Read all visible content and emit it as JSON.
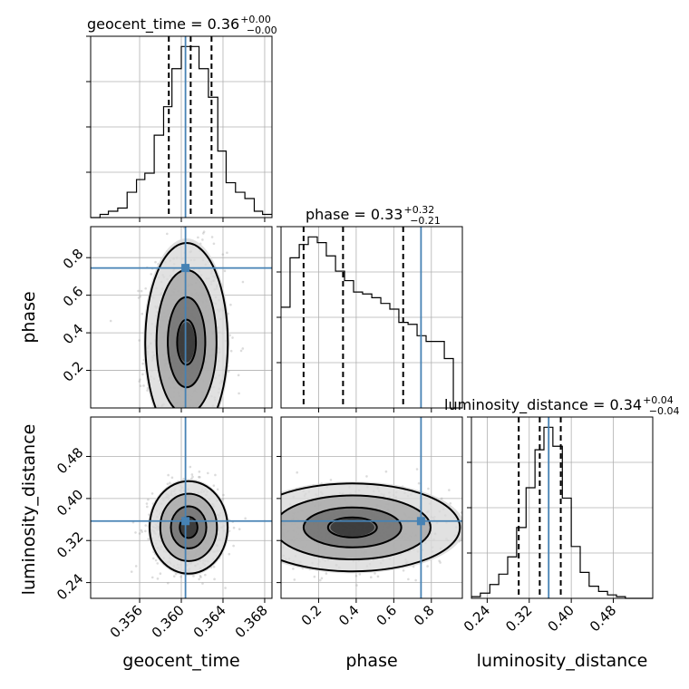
{
  "chart_data": {
    "type": "corner",
    "parameters": [
      "geocent_time",
      "phase",
      "luminosity_distance"
    ],
    "truths": {
      "geocent_time": 0.3604,
      "phase": 0.745,
      "luminosity_distance": 0.357
    },
    "titles": [
      {
        "param": "geocent_time",
        "label": "geocent_time = 0.36",
        "upper": "+0.00",
        "lower": "−0.00"
      },
      {
        "param": "phase",
        "label": "phase = 0.33",
        "upper": "+0.32",
        "lower": "−0.21"
      },
      {
        "param": "luminosity_distance",
        "label": "luminosity_distance = 0.34",
        "upper": "+0.04",
        "lower": "−0.04"
      }
    ],
    "axis_labels": {
      "geocent_time": "geocent_time",
      "phase": "phase",
      "luminosity_distance": "luminosity_distance"
    },
    "ranges": {
      "geocent_time": [
        0.3513,
        0.3687
      ],
      "phase": [
        0.0,
        0.965
      ],
      "luminosity_distance": [
        0.21,
        0.555
      ]
    },
    "ticks": {
      "geocent_time": [
        "0.356",
        "0.360",
        "0.364",
        "0.368"
      ],
      "phase": [
        "0.2",
        "0.4",
        "0.6",
        "0.8"
      ],
      "luminosity_distance": [
        "0.24",
        "0.32",
        "0.40",
        "0.48"
      ]
    },
    "quantiles": {
      "geocent_time": [
        0.3588,
        0.3609,
        0.3629
      ],
      "phase": [
        0.12,
        0.33,
        0.65
      ],
      "luminosity_distance": [
        0.3,
        0.34,
        0.38
      ]
    },
    "histograms": {
      "geocent_time": {
        "edges": [
          0.3513,
          0.3522,
          0.353,
          0.3539,
          0.3548,
          0.3557,
          0.3565,
          0.3574,
          0.3583,
          0.3591,
          0.36,
          0.3609,
          0.3617,
          0.3626,
          0.3635,
          0.3643,
          0.3652,
          0.3661,
          0.367,
          0.3678,
          0.3687
        ],
        "counts": [
          0,
          1,
          2,
          3,
          8,
          12,
          14,
          26,
          35,
          47,
          54,
          54,
          47,
          38,
          21,
          11,
          8,
          6,
          2,
          1
        ]
      },
      "phase": {
        "edges": [
          0.0,
          0.048,
          0.097,
          0.145,
          0.193,
          0.241,
          0.29,
          0.338,
          0.386,
          0.434,
          0.483,
          0.531,
          0.579,
          0.627,
          0.676,
          0.724,
          0.772,
          0.82,
          0.869,
          0.917,
          0.965
        ],
        "counts": [
          53,
          79,
          86,
          90,
          87,
          80,
          72,
          67,
          61,
          60,
          58,
          55,
          52,
          45,
          44,
          38,
          35,
          35,
          26,
          0
        ]
      },
      "luminosity_distance": {
        "edges": [
          0.21,
          0.227,
          0.245,
          0.262,
          0.279,
          0.296,
          0.314,
          0.331,
          0.348,
          0.365,
          0.383,
          0.4,
          0.417,
          0.434,
          0.452,
          0.469,
          0.486,
          0.503,
          0.521,
          0.538,
          0.555
        ],
        "counts": [
          1,
          3,
          8,
          14,
          24,
          41,
          64,
          86,
          99,
          88,
          58,
          30,
          15,
          7,
          4,
          2,
          1,
          0,
          0,
          0
        ]
      }
    },
    "scatter": {
      "geocent_time_vs_phase": {
        "center": [
          0.3605,
          0.35
        ],
        "spread": [
          0.0018,
          0.24
        ]
      },
      "geocent_time_vs_luminosity_distance": {
        "center": [
          0.3607,
          0.345
        ],
        "spread": [
          0.0017,
          0.04
        ]
      },
      "phase_vs_luminosity_distance": {
        "center": [
          0.38,
          0.345
        ],
        "spread": [
          0.26,
          0.038
        ]
      }
    },
    "grid": true
  }
}
